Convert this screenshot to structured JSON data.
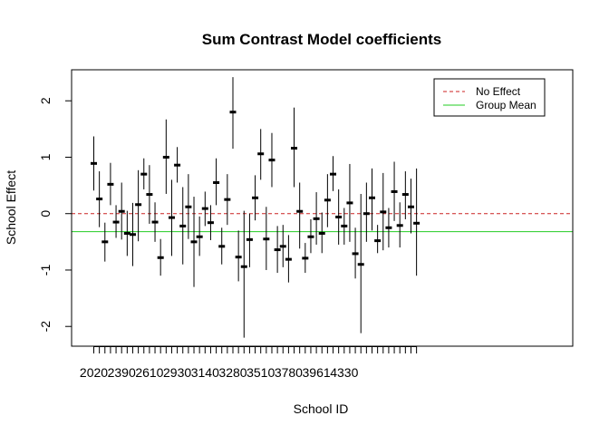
{
  "chart_data": {
    "type": "scatter",
    "title": "Sum Contrast Model coefficients",
    "xlabel": "School ID",
    "ylabel": "School Effect",
    "ylim": [
      -2.35,
      2.55
    ],
    "yticks": [
      -2,
      -1,
      0,
      1,
      2
    ],
    "xtick_labels": [
      "2020",
      "2390",
      "2610",
      "2930",
      "3140",
      "3280",
      "3510",
      "3780",
      "3961",
      "4330"
    ],
    "xtick_label_every": 5,
    "grid": false,
    "legend_position": "top-right",
    "legend": [
      {
        "label": "No Effect",
        "color": "#cc2222",
        "style": "dashed"
      },
      {
        "label": "Group Mean",
        "color": "#22cc22",
        "style": "solid"
      }
    ],
    "no_effect_line": 0,
    "group_mean_line": -0.32,
    "series": [
      {
        "estimates": [
          0.89,
          0.26,
          -0.5,
          0.52,
          -0.15,
          0.04,
          -0.35,
          -0.37,
          0.16,
          0.7,
          0.34,
          -0.15,
          -0.78,
          1.0,
          -0.07,
          0.86,
          -0.22,
          0.12,
          -0.5,
          -0.41,
          0.09,
          -0.16,
          0.55,
          -0.58,
          0.25,
          1.8,
          -0.77,
          -0.94,
          -0.46,
          0.28,
          1.06,
          -0.45,
          0.95,
          -0.64,
          -0.58,
          -0.81,
          1.16,
          0.04,
          -0.79,
          -0.41,
          -0.09,
          -0.35,
          0.24,
          0.7,
          -0.06,
          -0.22,
          0.19,
          -0.71,
          -0.9,
          0.0,
          0.28,
          -0.48,
          0.03,
          -0.25,
          0.39,
          -0.21,
          0.34,
          0.12,
          -0.17
        ],
        "lower": [
          0.41,
          -0.24,
          -0.85,
          0.15,
          -0.43,
          -0.46,
          -0.75,
          -0.93,
          -0.49,
          0.43,
          -0.18,
          -0.5,
          -1.1,
          0.35,
          -0.75,
          0.55,
          -0.9,
          -0.45,
          -1.3,
          -0.75,
          -0.22,
          -0.47,
          0.15,
          -0.9,
          -0.2,
          1.15,
          -1.2,
          -2.2,
          -0.95,
          -0.12,
          0.6,
          -1.0,
          0.47,
          -1.05,
          -0.95,
          -1.22,
          0.47,
          -0.62,
          -1.05,
          -0.7,
          -0.55,
          -0.7,
          -0.24,
          0.4,
          -0.55,
          -0.55,
          -0.5,
          -1.15,
          -2.12,
          -0.5,
          -0.3,
          -0.7,
          -0.65,
          -0.6,
          -0.13,
          -0.6,
          -0.1,
          -0.35,
          -1.1
        ],
        "upper": [
          1.37,
          0.75,
          -0.16,
          0.9,
          0.15,
          0.55,
          0.05,
          0.19,
          0.77,
          0.98,
          0.86,
          0.2,
          -0.45,
          1.67,
          0.6,
          1.18,
          0.47,
          0.7,
          0.3,
          -0.05,
          0.39,
          0.15,
          0.98,
          -0.25,
          0.7,
          2.42,
          -0.3,
          0.05,
          0.0,
          0.68,
          1.5,
          0.12,
          1.43,
          -0.22,
          -0.2,
          -0.38,
          1.88,
          0.55,
          -0.52,
          -0.1,
          0.38,
          0.02,
          0.7,
          1.02,
          0.43,
          0.1,
          0.88,
          -0.25,
          0.35,
          0.55,
          0.8,
          -0.2,
          0.72,
          0.1,
          0.92,
          0.2,
          0.75,
          0.62,
          0.8
        ]
      }
    ]
  }
}
